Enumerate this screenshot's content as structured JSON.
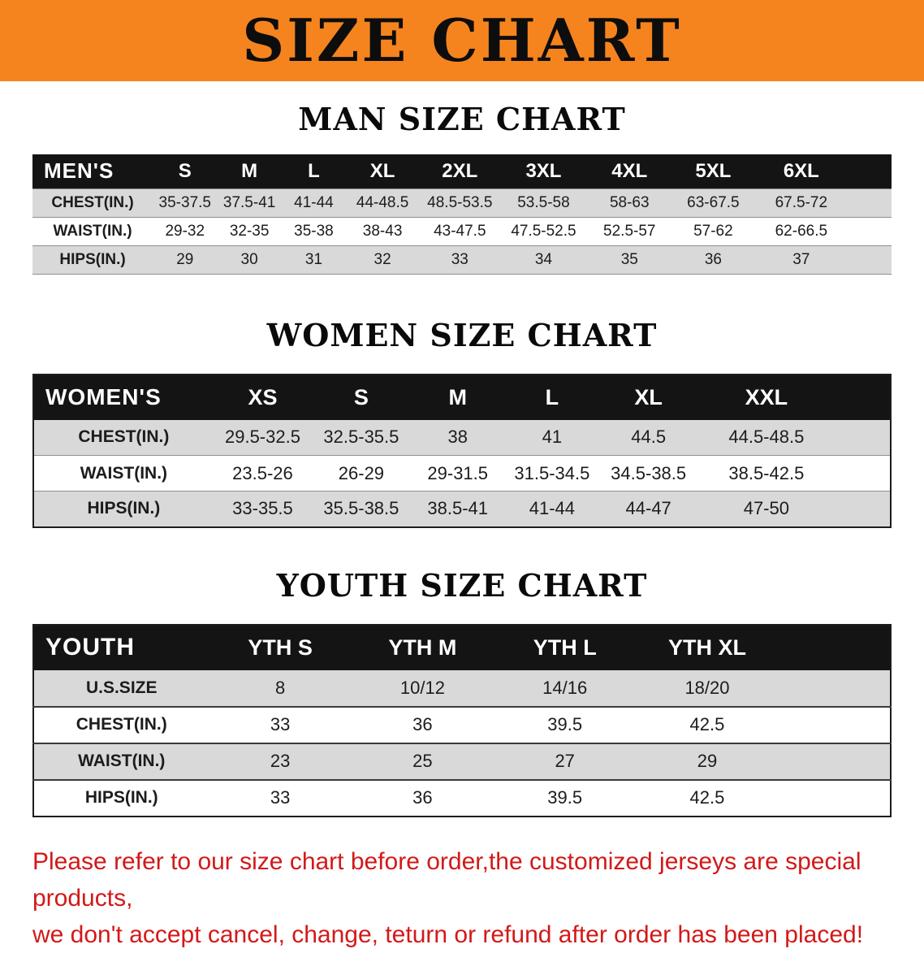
{
  "banner": {
    "title": "SIZE CHART"
  },
  "colors": {
    "banner_bg": "#f5841e",
    "header_bg": "#141414",
    "row_gray": "#d9d9d9",
    "accent_red": "#d21919"
  },
  "sections": {
    "men": {
      "heading": "MAN SIZE CHART",
      "header": [
        "MEN'S",
        "S",
        "M",
        "L",
        "XL",
        "2XL",
        "3XL",
        "4XL",
        "5XL",
        "6XL"
      ],
      "rows": [
        [
          "CHEST(IN.)",
          "35-37.5",
          "37.5-41",
          "41-44",
          "44-48.5",
          "48.5-53.5",
          "53.5-58",
          "58-63",
          "63-67.5",
          "67.5-72"
        ],
        [
          "WAIST(IN.)",
          "29-32",
          "32-35",
          "35-38",
          "38-43",
          "43-47.5",
          "47.5-52.5",
          "52.5-57",
          "57-62",
          "62-66.5"
        ],
        [
          "HIPS(IN.)",
          "29",
          "30",
          "31",
          "32",
          "33",
          "34",
          "35",
          "36",
          "37"
        ]
      ]
    },
    "women": {
      "heading": "WOMEN SIZE CHART",
      "header": [
        "WOMEN'S",
        "XS",
        "S",
        "M",
        "L",
        "XL",
        "XXL"
      ],
      "rows": [
        [
          "CHEST(IN.)",
          "29.5-32.5",
          "32.5-35.5",
          "38",
          "41",
          "44.5",
          "44.5-48.5"
        ],
        [
          "WAIST(IN.)",
          "23.5-26",
          "26-29",
          "29-31.5",
          "31.5-34.5",
          "34.5-38.5",
          "38.5-42.5"
        ],
        [
          "HIPS(IN.)",
          "33-35.5",
          "35.5-38.5",
          "38.5-41",
          "41-44",
          "44-47",
          "47-50"
        ]
      ]
    },
    "youth": {
      "heading": "YOUTH SIZE CHART",
      "header": [
        "YOUTH",
        "YTH S",
        "YTH M",
        "YTH L",
        "YTH XL"
      ],
      "rows": [
        [
          "U.S.SIZE",
          "8",
          "10/12",
          "14/16",
          "18/20"
        ],
        [
          "CHEST(IN.)",
          "33",
          "36",
          "39.5",
          "42.5"
        ],
        [
          "WAIST(IN.)",
          "23",
          "25",
          "27",
          "29"
        ],
        [
          "HIPS(IN.)",
          "33",
          "36",
          "39.5",
          "42.5"
        ]
      ]
    }
  },
  "footnote": {
    "line1": "Please refer to our size chart before order,the customized jerseys are special products,",
    "line2": "we don't accept cancel, change, teturn or refund after order has been placed!"
  }
}
